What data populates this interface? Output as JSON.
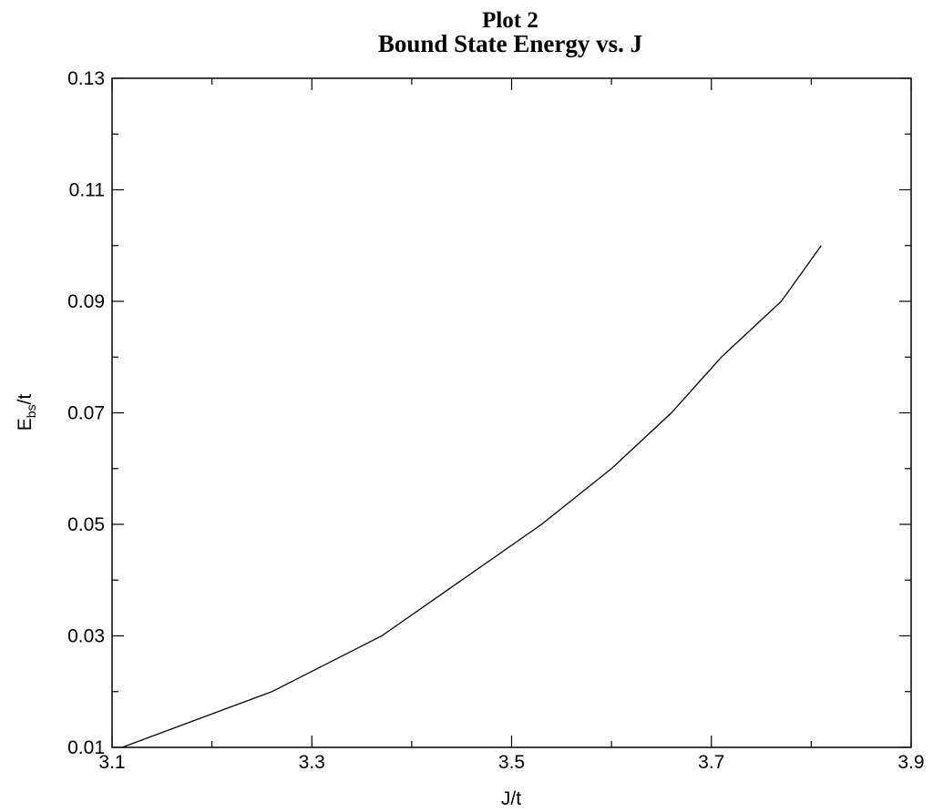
{
  "chart_data": {
    "type": "line",
    "title_line1": "Plot 2",
    "title_line2": "Bound State Energy vs. J",
    "xlabel": "J/t",
    "ylabel_main": "E",
    "ylabel_sub": "bs",
    "ylabel_tail": "/t",
    "xlim": [
      3.1,
      3.9
    ],
    "ylim": [
      0.01,
      0.13
    ],
    "xticks": [
      "3.1",
      "3.3",
      "3.5",
      "3.7",
      "3.9"
    ],
    "yticks": [
      "0.01",
      "0.03",
      "0.05",
      "0.07",
      "0.09",
      "0.11",
      "0.13"
    ],
    "grid": false,
    "series": [
      {
        "x": [
          3.11,
          3.26,
          3.37,
          3.45,
          3.53,
          3.6,
          3.66,
          3.71,
          3.77,
          3.81
        ],
        "y": [
          0.01,
          0.02,
          0.03,
          0.04,
          0.05,
          0.06,
          0.07,
          0.08,
          0.09,
          0.1
        ]
      }
    ]
  }
}
